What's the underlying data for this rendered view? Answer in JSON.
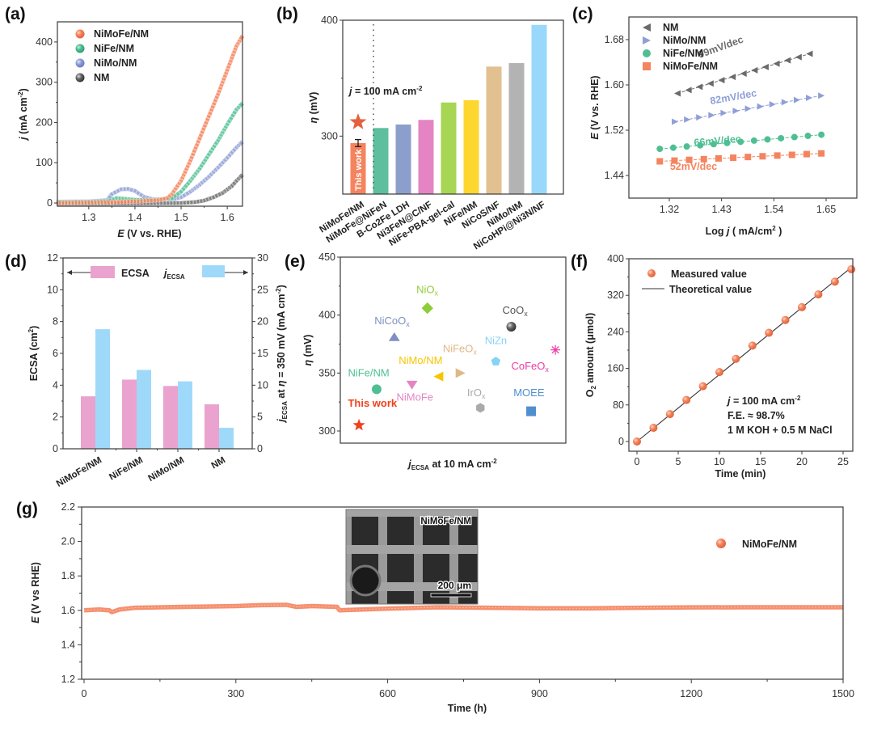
{
  "chart_data": [
    {
      "id": "a",
      "panel_label": "(a)",
      "type": "line",
      "xlabel_italic": "E",
      "xlabel": " (V vs. RHE)",
      "ylabel_italic": "j",
      "ylabel": " (mA cm",
      "ylabel_sup": "-2",
      "ylabel_end": ")",
      "xlim": [
        1.232,
        1.633
      ],
      "ylim": [
        -8,
        450
      ],
      "xticks": [
        1.3,
        1.4,
        1.5,
        1.6
      ],
      "xtick_labels": [
        "1.3",
        "1.4",
        "1.5",
        "1.6"
      ],
      "yticks": [
        0,
        100,
        200,
        300,
        400
      ],
      "ytick_labels": [
        "0",
        "100",
        "200",
        "300",
        "400"
      ],
      "legend_position": "top-left",
      "series": [
        {
          "name": "NiMoFe/NM",
          "color": "#f47f57",
          "x": [
            1.23,
            1.3,
            1.35,
            1.4,
            1.45,
            1.47,
            1.48,
            1.5,
            1.52,
            1.54,
            1.56,
            1.58,
            1.6,
            1.61,
            1.62,
            1.633
          ],
          "y": [
            0,
            1,
            2,
            4,
            7,
            12,
            22,
            55,
            105,
            160,
            215,
            270,
            330,
            360,
            390,
            415
          ]
        },
        {
          "name": "NiFe/NM",
          "color": "#4fbf93",
          "x": [
            1.23,
            1.3,
            1.34,
            1.36,
            1.38,
            1.4,
            1.44,
            1.48,
            1.5,
            1.52,
            1.54,
            1.56,
            1.58,
            1.6,
            1.62,
            1.633
          ],
          "y": [
            2,
            3,
            4,
            12,
            10,
            8,
            7,
            12,
            28,
            55,
            85,
            120,
            155,
            195,
            232,
            248
          ]
        },
        {
          "name": "NiMo/NM",
          "color": "#8f9fd6",
          "x": [
            1.23,
            1.3,
            1.34,
            1.35,
            1.37,
            1.385,
            1.4,
            1.42,
            1.44,
            1.48,
            1.5,
            1.52,
            1.54,
            1.56,
            1.58,
            1.6,
            1.62,
            1.633
          ],
          "y": [
            3,
            4,
            7,
            22,
            34,
            35,
            30,
            15,
            9,
            9,
            14,
            28,
            45,
            65,
            88,
            112,
            138,
            152
          ]
        },
        {
          "name": "NM",
          "color": "#6b6b6b",
          "x": [
            1.23,
            1.4,
            1.5,
            1.53,
            1.55,
            1.57,
            1.59,
            1.61,
            1.62,
            1.633
          ],
          "y": [
            -2,
            -1,
            0,
            2,
            6,
            14,
            25,
            42,
            55,
            70
          ]
        }
      ]
    },
    {
      "id": "b",
      "panel_label": "(b)",
      "type": "bar",
      "ylabel_italic": "η",
      "ylabel": " (mV)",
      "ylim": [
        250,
        400
      ],
      "yticks": [
        300,
        400
      ],
      "ytick_labels": [
        "300",
        "400"
      ],
      "annotation_italic": "j",
      "annotation": " = 100 mA cm",
      "annotation_sup": "-2",
      "this_work_label": "This work",
      "categories": [
        "NiMoFe/NM",
        "NiMoFe@NiFeN",
        "B-Co2Fe LDH",
        "Ni3FeN@C/NF",
        "NiFe-PBA-gel-cal",
        "NiFe/NM",
        "NiCoS/NF",
        "NiMo/NM",
        "NiCoHPi@Ni3N/NF"
      ],
      "values": [
        294,
        307,
        310,
        314,
        329,
        331,
        360,
        363,
        396
      ],
      "error": [
        3,
        0,
        0,
        0,
        0,
        0,
        0,
        0,
        0
      ],
      "colors": [
        "#f4845f",
        "#5dbf9d",
        "#8c9ecb",
        "#e484c3",
        "#a6d653",
        "#fed630",
        "#e2c08f",
        "#b3b3b3",
        "#99d8fa"
      ]
    },
    {
      "id": "c",
      "panel_label": "(c)",
      "type": "scatter",
      "xlabel": "Log ",
      "xlabel_italic": "j",
      "xlabel_end": "  ( mA/cm",
      "xlabel_sup": "2",
      "xlabel_close": " )",
      "ylabel_italic": "E",
      "ylabel": " (V vs. RHE)",
      "xlim": [
        1.235,
        1.72
      ],
      "ylim": [
        1.4,
        1.72
      ],
      "xticks": [
        1.32,
        1.43,
        1.54,
        1.65
      ],
      "xtick_labels": [
        "1.32",
        "1.43",
        "1.54",
        "1.65"
      ],
      "yticks": [
        1.44,
        1.52,
        1.6,
        1.68
      ],
      "ytick_labels": [
        "1.44",
        "1.52",
        "1.60",
        "1.68"
      ],
      "legend_position": "top-left",
      "series": [
        {
          "name": "NM",
          "marker": "triangle-left",
          "color": "#6b6b6b",
          "tafel": "99mV/dec",
          "x_start": 1.337,
          "x_end": 1.615,
          "y_start": 1.585,
          "y_end": 1.655,
          "n": 13
        },
        {
          "name": "NiMo/NM",
          "marker": "triangle-right",
          "color": "#8f9fd6",
          "tafel": "82mV/dec",
          "x_start": 1.332,
          "x_end": 1.64,
          "y_start": 1.535,
          "y_end": 1.581,
          "n": 13
        },
        {
          "name": "NiFe/NM",
          "marker": "circle",
          "color": "#4fbf93",
          "tafel": "66mV/dec",
          "x_start": 1.3,
          "x_end": 1.64,
          "y_start": 1.487,
          "y_end": 1.512,
          "n": 13
        },
        {
          "name": "NiMoFe/NM",
          "marker": "square",
          "color": "#f4845f",
          "tafel": "52mV/dec",
          "x_start": 1.3,
          "x_end": 1.64,
          "y_start": 1.465,
          "y_end": 1.479,
          "n": 12
        }
      ]
    },
    {
      "id": "d",
      "panel_label": "(d)",
      "type": "bar",
      "ylabel": "ECSA (cm",
      "ylabel_sup": "2",
      "ylabel_end": ")",
      "y2label_italic": "j",
      "y2label_sub": "ECSA",
      "y2label": " at ",
      "y2label_eta": "η",
      "y2label_end": " = 350 mV (mA cm",
      "y2label_sup": "-2",
      "y2label_close": ")",
      "ylim": [
        0,
        12
      ],
      "y2lim": [
        0,
        30
      ],
      "yticks": [
        0,
        2,
        4,
        6,
        8,
        10,
        12
      ],
      "ytick_labels": [
        "0",
        "2",
        "4",
        "6",
        "8",
        "10",
        "12"
      ],
      "y2ticks": [
        0,
        5,
        10,
        15,
        20,
        25,
        30
      ],
      "y2tick_labels": [
        "0",
        "5",
        "10",
        "15",
        "20",
        "25",
        "30"
      ],
      "categories": [
        "NiMoFe/NM",
        "NiFe/NM",
        "NiMo/NM",
        "NM"
      ],
      "legend_position": "top",
      "series": [
        {
          "name": "ECSA",
          "axis": "left",
          "color": "#eaa3cf",
          "values": [
            3.3,
            4.35,
            3.95,
            2.8
          ]
        },
        {
          "name": "jECSA",
          "label_italic": "j",
          "label_sub": "ECSA",
          "axis": "right",
          "color": "#9fd9fa",
          "values": [
            18.8,
            12.4,
            10.6,
            3.3
          ]
        }
      ]
    },
    {
      "id": "e",
      "panel_label": "(e)",
      "type": "scatter",
      "xlabel_italic": "j",
      "xlabel_sub": "ECSA",
      "xlabel": " at 10 mA cm",
      "xlabel_sup": "-2",
      "ylabel_italic": "η",
      "ylabel": " (mV)",
      "xlim": [
        0,
        1
      ],
      "ylim": [
        290,
        450
      ],
      "yticks": [
        300,
        350,
        400,
        450
      ],
      "ytick_labels": [
        "300",
        "350",
        "400",
        "450"
      ],
      "points": [
        {
          "label": "This work",
          "sub": "",
          "x": 0.07,
          "y": 305,
          "marker": "star",
          "color": "#f0401c",
          "lx": 0.02,
          "ly": 321
        },
        {
          "label": "NiFe/NM",
          "sub": "",
          "x": 0.15,
          "y": 336,
          "marker": "circle",
          "color": "#4fbf93",
          "lx": 0.02,
          "ly": 347
        },
        {
          "label": "NiMoFe",
          "sub": "",
          "x": 0.31,
          "y": 340,
          "marker": "triangle-down",
          "color": "#e484c3",
          "lx": 0.24,
          "ly": 326
        },
        {
          "label": "NiCoO",
          "sub": "x",
          "x": 0.23,
          "y": 381,
          "marker": "triangle-up",
          "color": "#7f8fc4",
          "lx": 0.14,
          "ly": 392
        },
        {
          "label": "NiO",
          "sub": "x",
          "x": 0.38,
          "y": 406,
          "marker": "diamond",
          "color": "#8fcc3c",
          "lx": 0.33,
          "ly": 419
        },
        {
          "label": "NiMo/NM",
          "sub": "",
          "x": 0.43,
          "y": 347,
          "marker": "triangle-left",
          "color": "#f7c500",
          "lx": 0.25,
          "ly": 358
        },
        {
          "label": "NiFeO",
          "sub": "x",
          "x": 0.53,
          "y": 350,
          "marker": "triangle-right",
          "color": "#deb887",
          "lx": 0.45,
          "ly": 368
        },
        {
          "label": "IrO",
          "sub": "x",
          "x": 0.62,
          "y": 320,
          "marker": "hexagon",
          "color": "#aaaaaa",
          "lx": 0.56,
          "ly": 330
        },
        {
          "label": "NiZn",
          "sub": "",
          "x": 0.69,
          "y": 360,
          "marker": "pentagon",
          "color": "#87d3f5",
          "lx": 0.64,
          "ly": 375
        },
        {
          "label": "CoO",
          "sub": "x",
          "x": 0.76,
          "y": 390,
          "marker": "sphere",
          "color": "#555555",
          "lx": 0.72,
          "ly": 401
        },
        {
          "label": "MOEE",
          "sub": "",
          "x": 0.85,
          "y": 317,
          "marker": "square",
          "color": "#4f8fcf",
          "lx": 0.77,
          "ly": 330
        },
        {
          "label": "CoFeO",
          "sub": "x",
          "x": 0.96,
          "y": 370,
          "marker": "asterisk",
          "color": "#ee3aa5",
          "lx": 0.76,
          "ly": 353
        }
      ]
    },
    {
      "id": "f",
      "panel_label": "(f)",
      "type": "scatter",
      "xlabel": "Time (min)",
      "ylabel_pre": "O",
      "ylabel_sub": "2",
      "ylabel": " amount (μmol)",
      "xlim": [
        -1,
        27
      ],
      "ylim": [
        -8,
        400
      ],
      "xticks": [
        0,
        5,
        10,
        15,
        20,
        25
      ],
      "xtick_labels": [
        "0",
        "5",
        "10",
        "15",
        "20",
        "25"
      ],
      "yticks": [
        0,
        80,
        160,
        240,
        320,
        400
      ],
      "ytick_labels": [
        "0",
        "80",
        "160",
        "240",
        "320",
        "400"
      ],
      "legend_position": "top-left",
      "measured": {
        "name": "Measured value",
        "color": "#f4845f",
        "x": [
          0,
          2,
          4,
          6,
          8,
          10,
          12,
          14,
          16,
          18,
          20,
          22,
          24,
          26
        ],
        "y": [
          0,
          30,
          60,
          91,
          121,
          152,
          181,
          210,
          238,
          266,
          294,
          322,
          350,
          377
        ]
      },
      "theoretical": {
        "name": "Theoretical value",
        "color": "#333333",
        "x": [
          0,
          26.2
        ],
        "y": [
          0,
          384
        ]
      },
      "annotations": {
        "line1_italic": "j",
        "line1": " = 100 mA cm",
        "line1_sup": "-2",
        "line2": "F.E. ≈ 98.7%",
        "line3": "1 M KOH + 0.5 M NaCl"
      }
    },
    {
      "id": "g",
      "panel_label": "(g)",
      "type": "line",
      "xlabel": "Time (h)",
      "ylabel_italic": "E",
      "ylabel": " (V vs RHE)",
      "xlim": [
        -8,
        1500
      ],
      "ylim": [
        1.2,
        2.2
      ],
      "xticks": [
        0,
        300,
        600,
        900,
        1200,
        1500
      ],
      "xtick_labels": [
        "0",
        "300",
        "600",
        "900",
        "1200",
        "1500"
      ],
      "yticks": [
        1.2,
        1.4,
        1.6,
        1.8,
        2.0,
        2.2
      ],
      "ytick_labels": [
        "1.2",
        "1.4",
        "1.6",
        "1.8",
        "2.0",
        "2.2"
      ],
      "legend_position": "top-right",
      "series": [
        {
          "name": "NiMoFe/NM",
          "color": "#f4845f",
          "x": [
            0,
            30,
            50,
            55,
            70,
            100,
            200,
            300,
            350,
            400,
            420,
            450,
            500,
            505,
            520,
            600,
            700,
            800,
            900,
            1000,
            1100,
            1200,
            1300,
            1400,
            1500
          ],
          "y": [
            1.6,
            1.605,
            1.6,
            1.59,
            1.605,
            1.615,
            1.62,
            1.625,
            1.63,
            1.632,
            1.62,
            1.625,
            1.62,
            1.6,
            1.602,
            1.61,
            1.618,
            1.615,
            1.612,
            1.612,
            1.615,
            1.617,
            1.618,
            1.618,
            1.618
          ]
        }
      ],
      "inset": {
        "label": "NiMoFe/NM",
        "scale_bar": "200 μm",
        "kind": "SEM image"
      }
    }
  ]
}
